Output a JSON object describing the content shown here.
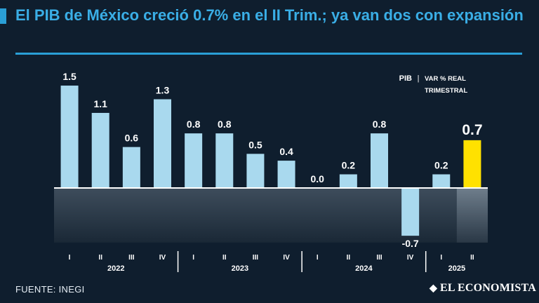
{
  "header": {
    "title": "El PIB de México creció 0.7% en el II Trim.; ya van dos con expansión"
  },
  "legend": {
    "label": "PIB",
    "separator": "|",
    "line1": "VAR % REAL",
    "line2": "TRIMESTRAL"
  },
  "chart_data": {
    "type": "bar",
    "title": "El PIB de México creció 0.7% en el II Trim.; ya van dos con expansión",
    "ylabel": "Var % real trimestral",
    "xlabel": "",
    "categories": [
      "I",
      "II",
      "III",
      "IV",
      "I",
      "II",
      "III",
      "IV",
      "I",
      "II",
      "III",
      "IV",
      "I",
      "II"
    ],
    "years": [
      "2022",
      "2022",
      "2022",
      "2022",
      "2023",
      "2023",
      "2023",
      "2023",
      "2024",
      "2024",
      "2024",
      "2024",
      "2025",
      "2025"
    ],
    "year_labels": [
      "2022",
      "2023",
      "2024",
      "2025"
    ],
    "values": [
      1.5,
      1.1,
      0.6,
      1.3,
      0.8,
      0.8,
      0.5,
      0.4,
      0.0,
      0.2,
      0.8,
      -0.7,
      0.2,
      0.7
    ],
    "value_labels": [
      "1.5",
      "1.1",
      "0.6",
      "1.3",
      "0.8",
      "0.8",
      "0.5",
      "0.4",
      "0.0",
      "0.2",
      "0.8",
      "-0.7",
      "0.2",
      "0.7"
    ],
    "highlight_index": 13,
    "ylim": [
      -0.8,
      1.6
    ],
    "colors": {
      "bar": "#a9d9ee",
      "highlight": "#ffe100",
      "negative_area": "#4a5a6a"
    }
  },
  "footer": {
    "source": "FUENTE: INEGI",
    "brand": "EL ECONOMISTA",
    "brand_icon": "eagle-logo"
  }
}
